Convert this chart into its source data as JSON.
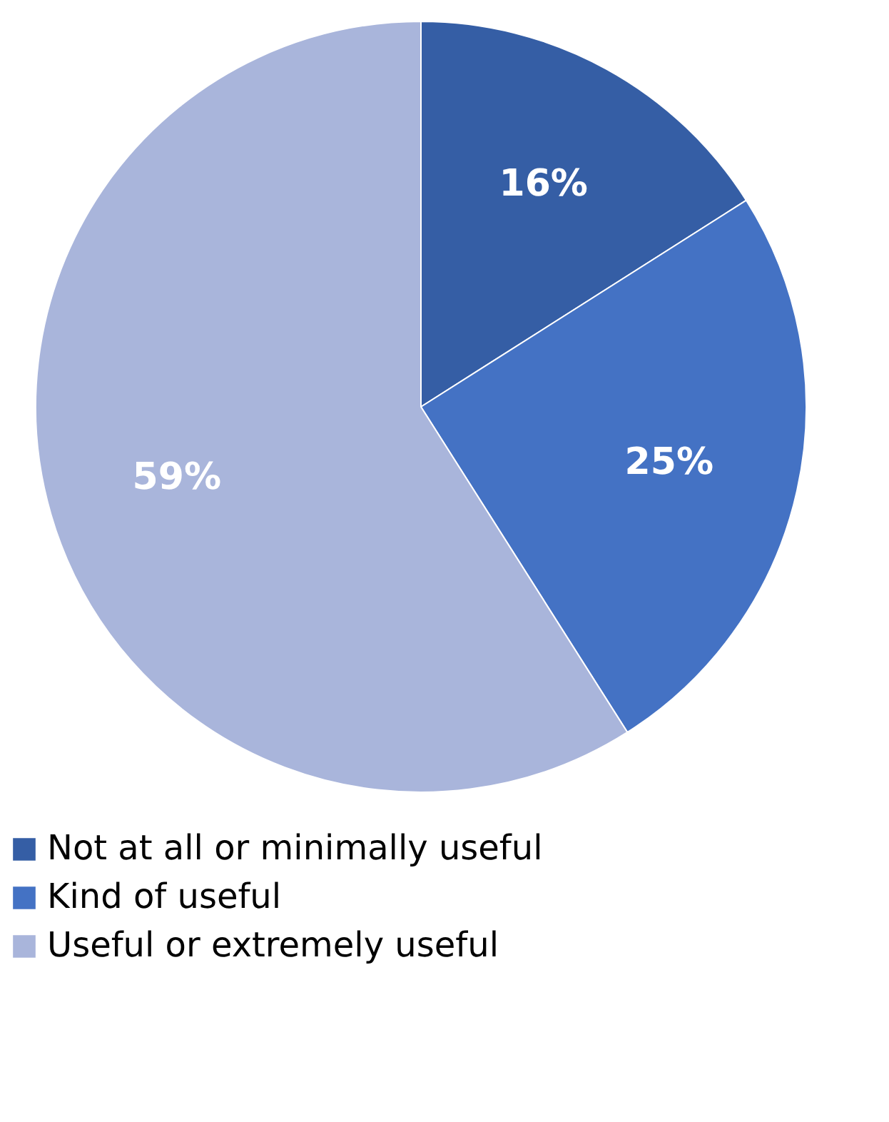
{
  "chart_data": {
    "type": "pie",
    "categories": [
      "Not at all or minimally useful",
      "Kind of useful",
      "Useful or extremely useful"
    ],
    "values": [
      16,
      25,
      59
    ],
    "colors": [
      "#355ea5",
      "#4472c4",
      "#a9b5db"
    ],
    "value_labels": [
      "16%",
      "25%",
      "59%"
    ],
    "legend": "bottom"
  }
}
